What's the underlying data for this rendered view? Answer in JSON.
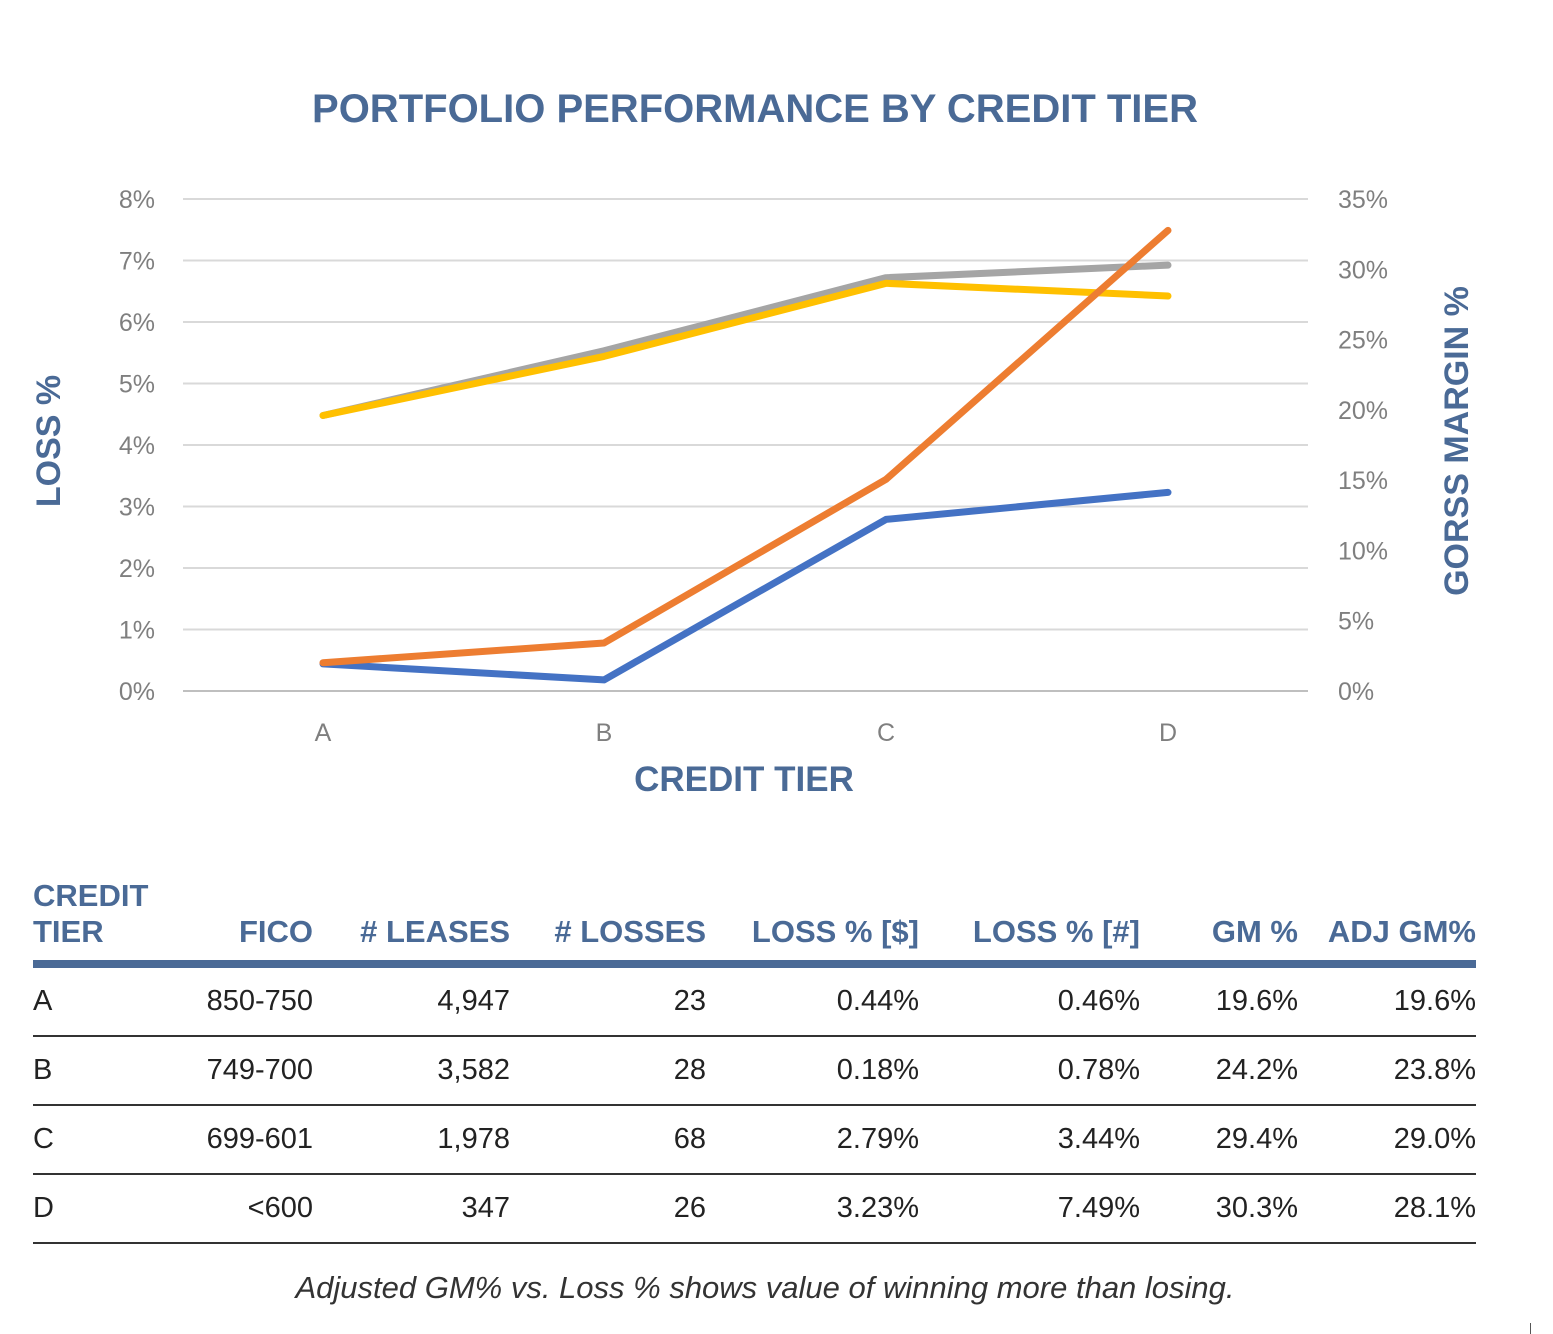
{
  "chart_data": {
    "type": "line",
    "title": "PORTFOLIO PERFORMANCE BY CREDIT TIER",
    "xlabel": "CREDIT TIER",
    "ylabel": "LOSS %",
    "y2label": "GORSS MARGIN %",
    "categories": [
      "A",
      "B",
      "C",
      "D"
    ],
    "ylim": [
      0,
      8
    ],
    "y2lim": [
      0,
      35
    ],
    "yticks": [
      "0%",
      "1%",
      "2%",
      "3%",
      "4%",
      "5%",
      "6%",
      "7%",
      "8%"
    ],
    "y2ticks": [
      "0%",
      "5%",
      "10%",
      "15%",
      "20%",
      "25%",
      "30%",
      "35%"
    ],
    "grid": true,
    "legend": "none",
    "series": [
      {
        "axis": "left",
        "values": [
          0.44,
          0.18,
          2.79,
          3.23
        ],
        "color": "#4472c4"
      },
      {
        "axis": "left",
        "values": [
          0.46,
          0.78,
          3.44,
          7.49
        ],
        "color": "#ed7d31"
      },
      {
        "axis": "right",
        "values": [
          19.6,
          24.2,
          29.4,
          30.3
        ],
        "color": "#a5a5a5"
      },
      {
        "axis": "right",
        "values": [
          19.6,
          23.8,
          29.0,
          28.1
        ],
        "color": "#ffc000"
      }
    ]
  },
  "table": {
    "headers": [
      {
        "line1": "CREDIT",
        "line2": "TIER"
      },
      {
        "line1": "",
        "line2": "FICO"
      },
      {
        "line1": "",
        "line2": "# LEASES"
      },
      {
        "line1": "",
        "line2": "# LOSSES"
      },
      {
        "line1": "",
        "line2": "LOSS % [$]"
      },
      {
        "line1": "",
        "line2": "LOSS % [#]"
      },
      {
        "line1": "",
        "line2": "GM %"
      },
      {
        "line1": "",
        "line2": "ADJ GM%"
      }
    ],
    "rows": [
      [
        "A",
        "850-750",
        "4,947",
        "23",
        "0.44%",
        "0.46%",
        "19.6%",
        "19.6%"
      ],
      [
        "B",
        "749-700",
        "3,582",
        "28",
        "0.18%",
        "0.78%",
        "24.2%",
        "23.8%"
      ],
      [
        "C",
        "699-601",
        "1,978",
        "68",
        "2.79%",
        "3.44%",
        "29.4%",
        "29.0%"
      ],
      [
        "D",
        "<600",
        "347",
        "26",
        "3.23%",
        "7.49%",
        "30.3%",
        "28.1%"
      ]
    ]
  },
  "footnote": "Adjusted GM% vs. Loss % shows value of winning more than losing.",
  "colors": {
    "accent": "#4a6a96",
    "grid": "#d9d9d9",
    "tick": "#7f7f7f"
  }
}
